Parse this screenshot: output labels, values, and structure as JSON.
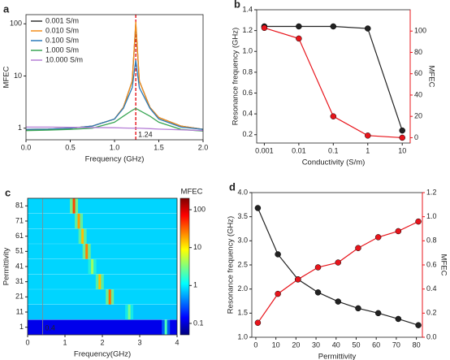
{
  "chart_data": [
    {
      "type": "line",
      "panel": "a",
      "xlabel": "Frequency (GHz)",
      "ylabel": "MFEC",
      "xlim": [
        0,
        2
      ],
      "xticks": [
        {
          "value": 0,
          "label": "0.0"
        },
        0.5,
        {
          "value": 1,
          "label": "1.0"
        },
        1.5,
        {
          "value": 2,
          "label": "2.0"
        }
      ],
      "ylim": [
        0.6,
        150
      ],
      "ylog": true,
      "yticks": [
        1,
        10,
        100
      ],
      "legend": "upper left",
      "vline": 1.24,
      "vline_color": "#e8141b",
      "x": [
        0,
        0.25,
        0.5,
        0.75,
        1.0,
        1.1,
        1.2,
        1.24,
        1.28,
        1.4,
        1.5,
        1.75,
        2.0
      ],
      "series": [
        {
          "name": "0.001 S/m",
          "color": "#333333",
          "values": [
            0.95,
            0.96,
            1.0,
            1.1,
            1.5,
            2.5,
            8,
            100,
            8,
            2.5,
            1.6,
            1.1,
            0.95
          ]
        },
        {
          "name": "0.010 S/m",
          "color": "#f28e1c",
          "values": [
            0.95,
            0.96,
            1.0,
            1.1,
            1.5,
            2.5,
            8,
            110,
            8,
            2.5,
            1.6,
            1.1,
            0.95
          ]
        },
        {
          "name": "0.100 S/m",
          "color": "#2b7bba",
          "values": [
            0.95,
            0.96,
            1.0,
            1.1,
            1.5,
            2.4,
            6,
            20,
            6,
            2.4,
            1.5,
            1.05,
            0.95
          ]
        },
        {
          "name": "1.000 S/m",
          "color": "#3aa655",
          "values": [
            0.9,
            0.92,
            0.95,
            1.0,
            1.3,
            1.7,
            2.2,
            2.4,
            2.2,
            1.7,
            1.3,
            0.95,
            0.88
          ]
        },
        {
          "name": "10.000 S/m",
          "color": "#b57fd6",
          "values": [
            1.05,
            1.05,
            1.04,
            1.03,
            1.02,
            1.01,
            1.0,
            1.0,
            1.0,
            0.98,
            0.96,
            0.93,
            0.9
          ]
        }
      ]
    },
    {
      "type": "dual",
      "panel": "b",
      "xlabel": "Conductivity (S/m)",
      "ylabel": "Resonance frequency (GHz)",
      "y2label": "MFEC",
      "y2color": "#e8141b",
      "xlim": [
        0.0006,
        17
      ],
      "xlog": true,
      "xticks": [
        0.001,
        0.01,
        0.1,
        1,
        10
      ],
      "ylim": [
        0.12,
        1.4
      ],
      "yticks": [
        0.2,
        0.4,
        0.6,
        0.8,
        {
          "value": 1,
          "label": "1.0"
        },
        1.2,
        1.4
      ],
      "y2lim": [
        -5,
        120
      ],
      "y2ticks": [
        0,
        20,
        40,
        60,
        80,
        100
      ],
      "x": [
        0.001,
        0.01,
        0.1,
        1,
        10
      ],
      "series": [
        {
          "color": "#222222",
          "values": [
            1.24,
            1.24,
            1.24,
            1.22,
            0.24
          ]
        },
        {
          "color": "#e8141b",
          "axis": "y2",
          "values": [
            103,
            93,
            20,
            2,
            0
          ]
        }
      ]
    },
    {
      "type": "heatmap",
      "panel": "c",
      "xlabel": "Frequency(GHz)",
      "ylabel": "Permittivity",
      "colorbar_label": "MFEC",
      "colormap": "jet",
      "xlim": [
        0,
        4
      ],
      "xticks": [
        0,
        1,
        2,
        3,
        4
      ],
      "ylim": [
        -4,
        86
      ],
      "clim": [
        0.05,
        200
      ],
      "cticks": [
        0.1,
        1,
        10,
        100
      ],
      "vline": 0.4,
      "vline_color": "#e8141b",
      "rows": [
        {
          "permittivity": 1,
          "background_mfec": 0.12,
          "peak_frequency": 3.7,
          "peak_mfec": 2
        },
        {
          "permittivity": 11,
          "background_mfec": 0.7,
          "peak_frequency": 2.72,
          "peak_mfec": 3
        },
        {
          "permittivity": 21,
          "background_mfec": 0.8,
          "peak_frequency": 2.2,
          "peak_mfec": 30
        },
        {
          "permittivity": 31,
          "background_mfec": 0.8,
          "peak_frequency": 1.93,
          "peak_mfec": 15
        },
        {
          "permittivity": 41,
          "background_mfec": 0.8,
          "peak_frequency": 1.73,
          "peak_mfec": 4
        },
        {
          "permittivity": 51,
          "background_mfec": 0.8,
          "peak_frequency": 1.58,
          "peak_mfec": 25
        },
        {
          "permittivity": 61,
          "background_mfec": 0.8,
          "peak_frequency": 1.47,
          "peak_mfec": 15
        },
        {
          "permittivity": 71,
          "background_mfec": 0.8,
          "peak_frequency": 1.37,
          "peak_mfec": 20
        },
        {
          "permittivity": 81,
          "background_mfec": 0.8,
          "peak_frequency": 1.24,
          "peak_mfec": 40
        }
      ]
    },
    {
      "type": "dual",
      "panel": "d",
      "xlabel": "Permittivity",
      "ylabel": "Resonance frequency (GHz)",
      "y2label": "MFEC",
      "y2color": "#e8141b",
      "xlim": [
        -2,
        83
      ],
      "xticks": [
        0,
        10,
        20,
        30,
        40,
        50,
        60,
        70,
        80
      ],
      "ylim": [
        1,
        4
      ],
      "yticks": [
        {
          "value": 1,
          "label": "1.0"
        },
        1.5,
        {
          "value": 2,
          "label": "2.0"
        },
        2.5,
        {
          "value": 3,
          "label": "3.0"
        },
        3.5,
        {
          "value": 4,
          "label": "4.0"
        }
      ],
      "y2lim": [
        0,
        1.2
      ],
      "y2ticks": [
        {
          "value": 0,
          "label": "0.0"
        },
        0.2,
        0.4,
        0.6,
        0.8,
        {
          "value": 1,
          "label": "1.0"
        },
        1.2
      ],
      "x": [
        1,
        11,
        21,
        31,
        41,
        51,
        61,
        71,
        81
      ],
      "series": [
        {
          "color": "#222222",
          "values": [
            3.68,
            2.72,
            2.2,
            1.93,
            1.74,
            1.6,
            1.5,
            1.38,
            1.25
          ]
        },
        {
          "color": "#e8141b",
          "axis": "y2",
          "values": [
            0.12,
            0.36,
            0.48,
            0.58,
            0.62,
            0.74,
            0.83,
            0.88,
            0.96
          ]
        }
      ]
    }
  ]
}
